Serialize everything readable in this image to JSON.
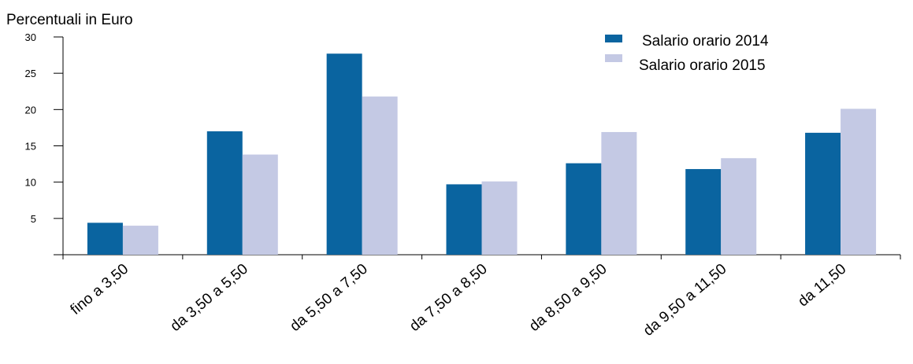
{
  "chart_data": {
    "type": "bar",
    "title": "",
    "ylabel": "Percentuali in Euro",
    "xlabel": "",
    "ylim": [
      0,
      30
    ],
    "yticks": [
      5,
      10,
      15,
      20,
      25,
      30
    ],
    "categories": [
      "fino a 3,50",
      "da 3,50 a 5,50",
      "da 5,50 a 7,50",
      "da 7,50 a 8,50",
      "da 8,50 a 9,50",
      "da 9,50 a 11,50",
      "da 11,50"
    ],
    "series": [
      {
        "name": "Salario orario 2014",
        "color": "#0a64a0",
        "values": [
          4.4,
          17.0,
          27.7,
          9.7,
          12.6,
          11.8,
          16.8
        ]
      },
      {
        "name": "Salario orario 2015",
        "color": "#c4c9e4",
        "values": [
          4.0,
          13.8,
          21.8,
          10.1,
          16.9,
          13.3,
          20.1
        ]
      }
    ],
    "legend": "top-right",
    "grid": false
  }
}
